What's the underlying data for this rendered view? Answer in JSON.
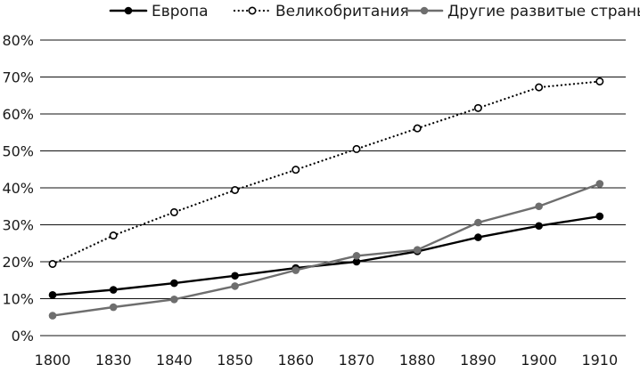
{
  "chart_data": {
    "type": "line",
    "title": "",
    "xlabel": "",
    "ylabel": "",
    "x": [
      1800,
      1830,
      1840,
      1850,
      1860,
      1870,
      1880,
      1890,
      1900,
      1910
    ],
    "x_tick_labels": [
      "1800",
      "1830",
      "1840",
      "1850",
      "1860",
      "1870",
      "1880",
      "1890",
      "1900",
      "1910"
    ],
    "y_ticks": [
      0,
      10,
      20,
      30,
      40,
      50,
      60,
      70,
      80
    ],
    "y_tick_labels": [
      "0%",
      "10%",
      "20%",
      "30%",
      "40%",
      "50%",
      "60%",
      "70%",
      "80%"
    ],
    "ylim": [
      0,
      80
    ],
    "y_unit": "%",
    "grid": "horizontal",
    "legend_position": "top",
    "series": [
      {
        "name": "Европа",
        "color": "#000000",
        "line_style": "solid",
        "marker": "filled-circle",
        "values": [
          11,
          12.4,
          14.2,
          16.2,
          18.3,
          20,
          22.8,
          26.6,
          29.7,
          32.3
        ]
      },
      {
        "name": "Великобритания",
        "color": "#000000",
        "line_style": "dotted",
        "marker": "hollow-circle",
        "values": [
          19.4,
          27.1,
          33.4,
          39.4,
          44.9,
          50.5,
          56.1,
          61.6,
          67.2,
          68.8
        ]
      },
      {
        "name": "Другие развитые страны",
        "color": "#6e6e6e",
        "line_style": "solid",
        "marker": "filled-circle",
        "values": [
          5.4,
          7.7,
          9.8,
          13.4,
          17.7,
          21.6,
          23.2,
          30.6,
          35,
          41.1
        ]
      }
    ]
  }
}
